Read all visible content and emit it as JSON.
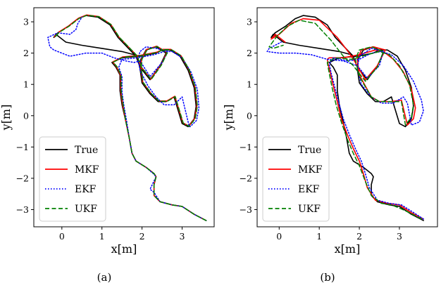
{
  "figure": {
    "captions": [
      "(a)",
      "(b)"
    ]
  },
  "colors": {
    "True": "#000000",
    "MKF": "#ff0000",
    "EKF": "#0000ff",
    "UKF": "#008000"
  },
  "chart_data": [
    {
      "type": "line",
      "caption": "(a)",
      "xlabel": "x[m]",
      "ylabel": "y[m]",
      "xlim": [
        -0.7,
        3.8
      ],
      "ylim": [
        -3.55,
        3.45
      ],
      "xticks": [
        0,
        1,
        2,
        3
      ],
      "yticks": [
        3,
        2,
        1,
        0,
        -1,
        -2,
        -3
      ],
      "xtick_labels": [
        "0",
        "1",
        "2",
        "3"
      ],
      "ytick_labels": [
        "3",
        "2",
        "1",
        "0",
        "−1",
        "−2",
        "−3"
      ],
      "legend_position": "lower-left",
      "series": [
        {
          "name": "True",
          "style": "solid",
          "x": [
            3.6,
            3.3,
            3.0,
            2.75,
            2.45,
            2.3,
            2.3,
            2.35,
            2.3,
            2.1,
            1.85,
            1.75,
            1.68,
            1.6,
            1.5,
            1.45,
            1.45,
            1.45,
            1.35,
            1.25,
            1.5,
            1.95,
            2.35,
            2.5,
            2.7,
            2.95,
            3.15,
            3.3,
            3.35,
            3.3,
            3.15,
            3.15,
            3.0,
            2.8,
            2.6,
            2.4,
            2.2,
            2.0,
            1.95,
            1.97,
            2.1,
            2.35,
            2.6,
            2.45,
            2.2,
            1.95,
            1.85,
            1.7,
            1.4,
            1.2,
            0.9,
            0.6,
            0.4,
            0.15,
            -0.1,
            -0.2,
            -0.15,
            0.1,
            0.5,
            1.0,
            1.5,
            1.8
          ],
          "y": [
            -3.35,
            -3.15,
            -2.9,
            -2.85,
            -2.75,
            -2.55,
            -2.2,
            -1.95,
            -1.85,
            -1.65,
            -1.45,
            -1.2,
            -0.7,
            -0.2,
            0.35,
            0.8,
            1.1,
            1.3,
            1.55,
            1.7,
            1.85,
            1.9,
            2.0,
            2.1,
            2.1,
            1.9,
            1.45,
            0.9,
            0.3,
            -0.1,
            -0.35,
            -0.35,
            -0.25,
            0.6,
            0.45,
            0.45,
            0.7,
            1.05,
            1.5,
            1.8,
            2.1,
            2.2,
            2.0,
            1.6,
            1.15,
            1.55,
            1.9,
            2.1,
            2.5,
            2.9,
            3.15,
            3.2,
            3.1,
            2.85,
            2.65,
            2.5,
            2.6,
            2.35,
            2.25,
            2.15,
            2.05,
            1.95
          ]
        },
        {
          "name": "MKF",
          "style": "solid",
          "x": [
            3.6,
            3.3,
            3.0,
            2.75,
            2.45,
            2.3,
            2.3,
            2.35,
            2.3,
            2.1,
            1.85,
            1.75,
            1.68,
            1.6,
            1.52,
            1.47,
            1.47,
            1.47,
            1.37,
            1.27,
            1.52,
            1.97,
            2.37,
            2.52,
            2.72,
            2.97,
            3.17,
            3.32,
            3.37,
            3.32,
            3.17,
            3.17,
            3.02,
            2.82,
            2.62,
            2.42,
            2.22,
            2.02,
            1.97,
            1.99,
            2.12,
            2.37,
            2.62,
            2.47,
            2.22,
            1.97,
            1.87,
            1.72,
            1.42,
            1.22,
            0.92,
            0.62,
            0.42,
            0.17,
            -0.08,
            -0.18,
            -0.13
          ],
          "y": [
            -3.35,
            -3.15,
            -2.9,
            -2.85,
            -2.75,
            -2.55,
            -2.2,
            -1.95,
            -1.85,
            -1.65,
            -1.45,
            -1.2,
            -0.7,
            -0.2,
            0.33,
            0.78,
            1.08,
            1.28,
            1.55,
            1.72,
            1.88,
            1.93,
            2.03,
            2.12,
            2.12,
            1.92,
            1.47,
            0.92,
            0.32,
            -0.08,
            -0.33,
            -0.33,
            -0.23,
            0.62,
            0.47,
            0.47,
            0.72,
            1.07,
            1.52,
            1.82,
            2.12,
            2.22,
            2.02,
            1.62,
            1.17,
            1.57,
            1.92,
            2.12,
            2.52,
            2.92,
            3.17,
            3.22,
            3.12,
            2.87,
            2.67,
            2.52,
            2.62
          ]
        },
        {
          "name": "EKF",
          "style": "dotted",
          "x": [
            3.6,
            3.3,
            3.0,
            2.75,
            2.45,
            2.3,
            2.2,
            2.35,
            2.28,
            2.1,
            1.85,
            1.75,
            1.68,
            1.62,
            1.55,
            1.5,
            1.5,
            1.5,
            1.42,
            1.5,
            1.9,
            2.3,
            2.55,
            2.75,
            3.0,
            3.22,
            3.38,
            3.42,
            3.36,
            3.2,
            3.18,
            3.0,
            2.8,
            2.55,
            2.35,
            2.15,
            1.95,
            1.9,
            1.95,
            2.1,
            2.35,
            2.65,
            2.5,
            2.2,
            1.95,
            1.8,
            1.6,
            1.3,
            1.0,
            0.6,
            0.2,
            -0.2,
            -0.3,
            -0.35,
            -0.1,
            0.2,
            0.35,
            0.4,
            0.5
          ],
          "y": [
            -3.35,
            -3.15,
            -2.9,
            -2.85,
            -2.75,
            -2.45,
            -2.35,
            -1.95,
            -1.85,
            -1.65,
            -1.45,
            -1.2,
            -0.7,
            -0.2,
            0.3,
            0.75,
            1.05,
            1.25,
            1.55,
            1.8,
            1.85,
            1.95,
            2.05,
            2.05,
            1.85,
            1.4,
            0.85,
            0.25,
            -0.15,
            -0.35,
            -0.35,
            0.6,
            0.35,
            0.35,
            0.6,
            0.95,
            1.45,
            1.8,
            2.05,
            2.2,
            2.15,
            2.05,
            1.7,
            1.25,
            1.75,
            1.7,
            1.75,
            1.85,
            2.0,
            2.0,
            1.9,
            2.1,
            2.2,
            2.5,
            2.65,
            2.6,
            2.75,
            2.95,
            3.15
          ]
        },
        {
          "name": "UKF",
          "style": "dashed",
          "x": [
            3.6,
            3.3,
            3.0,
            2.75,
            2.45,
            2.3,
            2.3,
            2.35,
            2.3,
            2.1,
            1.85,
            1.75,
            1.68,
            1.6,
            1.53,
            1.48,
            1.48,
            1.48,
            1.38,
            1.28,
            1.53,
            1.98,
            2.38,
            2.53,
            2.73,
            2.98,
            3.18,
            3.33,
            3.38,
            3.33,
            3.18,
            3.18,
            3.03,
            2.83,
            2.63,
            2.43,
            2.23,
            2.03,
            1.98,
            2.0,
            2.13,
            2.38,
            2.63,
            2.48,
            2.23,
            1.98,
            1.88,
            1.73,
            1.43,
            1.23,
            0.93,
            0.63,
            0.43,
            0.18,
            -0.07,
            -0.17,
            -0.12
          ],
          "y": [
            -3.35,
            -3.15,
            -2.9,
            -2.85,
            -2.75,
            -2.55,
            -2.2,
            -1.95,
            -1.85,
            -1.65,
            -1.45,
            -1.2,
            -0.7,
            -0.2,
            0.34,
            0.79,
            1.09,
            1.29,
            1.56,
            1.71,
            1.87,
            1.92,
            2.02,
            2.11,
            2.11,
            1.91,
            1.46,
            0.91,
            0.31,
            -0.09,
            -0.34,
            -0.34,
            -0.24,
            0.61,
            0.46,
            0.46,
            0.71,
            1.06,
            1.51,
            1.81,
            2.11,
            2.21,
            2.01,
            1.61,
            1.16,
            1.56,
            1.91,
            2.11,
            2.51,
            2.91,
            3.16,
            3.21,
            3.11,
            2.86,
            2.66,
            2.51,
            2.61
          ]
        }
      ]
    },
    {
      "type": "line",
      "caption": "(b)",
      "xlabel": "x[m]",
      "ylabel": "y[m]",
      "xlim": [
        -0.55,
        3.95
      ],
      "ylim": [
        -3.55,
        3.45
      ],
      "xticks": [
        0,
        1,
        2,
        3
      ],
      "yticks": [
        3,
        2,
        1,
        0,
        -1,
        -2,
        -3
      ],
      "xtick_labels": [
        "0",
        "1",
        "2",
        "3"
      ],
      "ytick_labels": [
        "3",
        "2",
        "1",
        "0",
        "−1",
        "−2",
        "−3"
      ],
      "legend_position": "lower-left",
      "series": [
        {
          "name": "True",
          "style": "solid",
          "x": [
            3.6,
            3.3,
            3.0,
            2.75,
            2.45,
            2.3,
            2.3,
            2.35,
            2.3,
            2.1,
            1.85,
            1.75,
            1.68,
            1.6,
            1.5,
            1.45,
            1.45,
            1.45,
            1.35,
            1.25,
            1.5,
            1.95,
            2.35,
            2.5,
            2.7,
            2.95,
            3.15,
            3.3,
            3.35,
            3.3,
            3.15,
            3.15,
            3.0,
            2.8,
            2.6,
            2.4,
            2.2,
            2.0,
            1.95,
            1.97,
            2.1,
            2.35,
            2.6,
            2.45,
            2.2,
            1.95,
            1.85,
            1.7,
            1.4,
            1.2,
            0.9,
            0.6,
            0.4,
            0.15,
            -0.1,
            -0.2,
            -0.15,
            0.1,
            0.5,
            1.0,
            1.5,
            1.8
          ],
          "y": [
            -3.35,
            -3.15,
            -2.9,
            -2.85,
            -2.75,
            -2.55,
            -2.2,
            -1.95,
            -1.85,
            -1.65,
            -1.45,
            -1.2,
            -0.7,
            -0.2,
            0.35,
            0.8,
            1.1,
            1.3,
            1.55,
            1.7,
            1.85,
            1.9,
            2.0,
            2.1,
            2.1,
            1.9,
            1.45,
            0.9,
            0.3,
            -0.1,
            -0.35,
            -0.35,
            -0.25,
            0.6,
            0.45,
            0.45,
            0.7,
            1.05,
            1.5,
            1.8,
            2.1,
            2.2,
            2.0,
            1.6,
            1.15,
            1.55,
            1.9,
            2.1,
            2.5,
            2.9,
            3.15,
            3.2,
            3.1,
            2.85,
            2.65,
            2.5,
            2.6,
            2.35,
            2.25,
            2.15,
            2.05,
            1.95
          ]
        },
        {
          "name": "MKF",
          "style": "solid",
          "x": [
            3.6,
            3.3,
            3.0,
            2.7,
            2.4,
            2.2,
            2.1,
            2.0,
            1.85,
            1.7,
            1.55,
            1.45,
            1.35,
            1.28,
            1.22,
            1.2,
            1.25,
            1.6,
            2.0,
            2.4,
            2.6,
            2.85,
            3.1,
            3.3,
            3.4,
            3.35,
            3.2,
            3.05,
            2.8,
            2.5,
            2.3,
            2.0,
            1.95,
            2.05,
            2.35,
            2.65,
            2.45,
            2.15,
            1.9,
            1.75,
            1.45,
            1.0,
            0.6,
            0.3,
            0.0,
            -0.2,
            -0.1,
            0.15
          ],
          "y": [
            -3.3,
            -3.1,
            -2.85,
            -2.8,
            -2.7,
            -2.3,
            -1.85,
            -1.45,
            -1.05,
            -0.6,
            -0.1,
            0.45,
            0.95,
            1.35,
            1.65,
            1.8,
            1.85,
            1.85,
            1.95,
            2.1,
            2.05,
            1.8,
            1.4,
            0.85,
            0.25,
            -0.1,
            -0.3,
            0.5,
            0.45,
            0.45,
            0.6,
            1.3,
            1.8,
            2.1,
            2.2,
            2.1,
            1.6,
            1.15,
            1.7,
            2.0,
            2.5,
            3.05,
            3.1,
            2.95,
            2.6,
            2.45,
            2.6,
            2.35
          ]
        },
        {
          "name": "EKF",
          "style": "dotted",
          "x": [
            3.6,
            3.3,
            3.05,
            2.75,
            2.45,
            2.25,
            2.15,
            2.05,
            1.9,
            1.75,
            1.6,
            1.48,
            1.38,
            1.3,
            1.25,
            1.35,
            1.7,
            2.0,
            2.3,
            2.55,
            2.8,
            3.1,
            3.35,
            3.55,
            3.6,
            3.5,
            3.3,
            3.2,
            3.1,
            2.85,
            2.55,
            2.3,
            2.05,
            1.95,
            2.0,
            2.3,
            2.6,
            2.5,
            2.2,
            1.95,
            1.6,
            1.2,
            0.8,
            0.4,
            0.0,
            -0.3,
            -0.25,
            0.05
          ],
          "y": [
            -3.3,
            -3.05,
            -2.85,
            -2.8,
            -2.7,
            -2.3,
            -1.85,
            -1.45,
            -1.05,
            -0.6,
            -0.1,
            0.45,
            0.95,
            1.35,
            1.65,
            1.85,
            1.75,
            1.8,
            2.0,
            2.05,
            1.95,
            1.6,
            1.1,
            0.5,
            0.15,
            -0.2,
            -0.3,
            0.4,
            0.6,
            0.4,
            0.4,
            0.6,
            1.0,
            1.5,
            1.9,
            2.15,
            2.05,
            1.6,
            1.2,
            1.6,
            1.75,
            1.8,
            1.95,
            2.0,
            2.0,
            2.05,
            2.15,
            2.35
          ]
        },
        {
          "name": "UKF",
          "style": "dashed",
          "x": [
            3.55,
            3.25,
            3.0,
            2.8,
            2.55,
            2.3,
            2.15,
            2.0,
            1.85,
            1.7,
            1.55,
            1.42,
            1.32,
            1.25,
            1.2,
            1.4,
            1.8,
            2.2,
            2.5,
            2.75,
            3.0,
            3.25,
            3.35,
            3.3,
            3.15,
            3.05,
            2.8,
            2.5,
            2.3,
            2.0,
            1.9,
            2.0,
            2.3,
            2.6,
            2.45,
            2.15,
            1.85,
            1.6,
            1.3,
            0.9,
            0.5,
            0.2,
            -0.05,
            -0.25,
            -0.15,
            0.1
          ],
          "y": [
            -3.3,
            -3.1,
            -2.95,
            -2.85,
            -2.8,
            -2.55,
            -2.1,
            -1.6,
            -1.2,
            -0.75,
            -0.2,
            0.35,
            0.9,
            1.35,
            1.7,
            1.85,
            1.8,
            1.95,
            2.05,
            1.95,
            1.6,
            1.0,
            0.35,
            -0.05,
            -0.3,
            0.45,
            0.45,
            0.45,
            0.6,
            1.25,
            1.8,
            2.1,
            2.2,
            2.05,
            1.55,
            1.1,
            1.6,
            1.9,
            2.4,
            2.95,
            3.05,
            2.85,
            2.55,
            2.2,
            2.15,
            2.25
          ]
        }
      ]
    }
  ]
}
